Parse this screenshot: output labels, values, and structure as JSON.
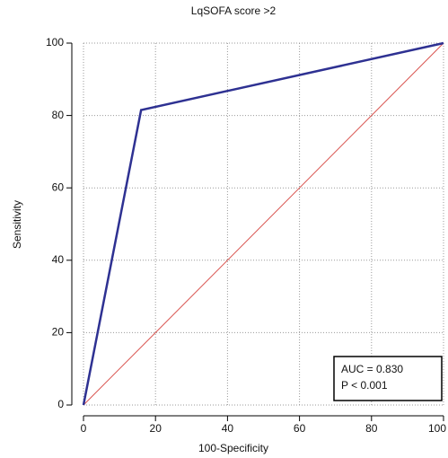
{
  "chart_data": {
    "type": "line",
    "title": "LqSOFA score >2",
    "x_label": "100-Specificity",
    "y_label": "Sensitivity",
    "series": [
      {
        "color": "#2e3192",
        "x": [
          0,
          16,
          100
        ],
        "values": [
          0,
          81.5,
          100
        ]
      },
      {
        "color": "#d9534f",
        "x": [
          0,
          100
        ],
        "values": [
          0,
          100
        ]
      }
    ],
    "xlim": [
      0,
      100
    ],
    "ylim": [
      0,
      100
    ],
    "xticks": [
      0,
      20,
      40,
      60,
      80,
      100
    ],
    "yticks": [
      0,
      20,
      40,
      60,
      80,
      100
    ],
    "grid": true,
    "annotations": [
      "AUC = 0.830",
      "P < 0.001"
    ]
  }
}
